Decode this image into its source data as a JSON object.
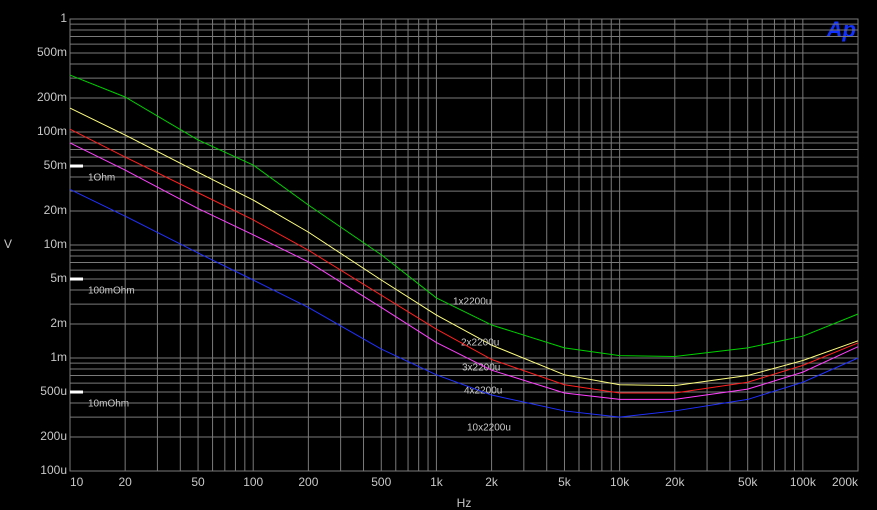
{
  "chart_data": {
    "type": "line",
    "logo": "Ap",
    "xlabel": "Hz",
    "ylabel": "V",
    "log_x": true,
    "log_y": true,
    "grid": true,
    "x": [
      10,
      20,
      50,
      100,
      200,
      500,
      1000,
      2000,
      5000,
      10000,
      20000,
      50000,
      100000,
      200000
    ],
    "series": [
      {
        "name": "1x2200u",
        "color": "#00d000",
        "values": [
          0.319,
          0.204,
          0.085,
          0.051,
          0.0226,
          0.0082,
          0.0034,
          0.00196,
          0.00123,
          0.00105,
          0.00103,
          0.00123,
          0.00156,
          0.00245
        ]
      },
      {
        "name": "2x2200u",
        "color": "#ffff80",
        "values": [
          0.163,
          0.094,
          0.044,
          0.025,
          0.013,
          0.0049,
          0.0024,
          0.0013,
          0.00071,
          0.00058,
          0.00057,
          0.0007,
          0.00095,
          0.00142
        ]
      },
      {
        "name": "3x2200u",
        "color": "#ff2020",
        "values": [
          0.106,
          0.06,
          0.029,
          0.0167,
          0.009,
          0.0036,
          0.0018,
          0.00097,
          0.00058,
          0.00049,
          0.00049,
          0.00061,
          0.00086,
          0.00136
        ]
      },
      {
        "name": "4x2200u",
        "color": "#ff40ff",
        "values": [
          0.08,
          0.046,
          0.021,
          0.0123,
          0.0071,
          0.0028,
          0.00137,
          0.00078,
          0.00049,
          0.00043,
          0.00043,
          0.00053,
          0.00075,
          0.00126
        ]
      },
      {
        "name": "10x2200u",
        "color": "#2030ff",
        "values": [
          0.031,
          0.018,
          0.0085,
          0.0049,
          0.0028,
          0.0012,
          0.00071,
          0.00047,
          0.00034,
          0.0003,
          0.00034,
          0.00043,
          0.00061,
          0.001
        ]
      }
    ],
    "annotations": [
      {
        "text": "1Ohm",
        "y": 0.05
      },
      {
        "text": "100mOhm",
        "y": 0.005
      },
      {
        "text": "10mOhm",
        "y": 0.0005
      }
    ],
    "xlim": [
      10,
      200000
    ],
    "ylim": [
      0.0001,
      1
    ],
    "xticks": [
      10,
      20,
      50,
      100,
      200,
      500,
      {
        "value": 1000,
        "label": "1k"
      },
      {
        "value": 2000,
        "label": "2k"
      },
      {
        "value": 5000,
        "label": "5k"
      },
      {
        "value": 10000,
        "label": "10k"
      },
      {
        "value": 20000,
        "label": "20k"
      },
      {
        "value": 50000,
        "label": "50k"
      },
      {
        "value": 100000,
        "label": "100k"
      },
      {
        "value": 200000,
        "label": "200k"
      }
    ],
    "yticks": [
      1,
      {
        "value": 0.5,
        "label": "500m"
      },
      {
        "value": 0.2,
        "label": "200m"
      },
      {
        "value": 0.1,
        "label": "100m"
      },
      {
        "value": 0.05,
        "label": "50m"
      },
      {
        "value": 0.02,
        "label": "20m"
      },
      {
        "value": 0.01,
        "label": "10m"
      },
      {
        "value": 0.005,
        "label": "5m"
      },
      {
        "value": 0.002,
        "label": "2m"
      },
      {
        "value": 0.001,
        "label": "1m"
      },
      {
        "value": 0.0005,
        "label": "500u"
      },
      {
        "value": 0.0002,
        "label": "200u"
      },
      {
        "value": 0.0001,
        "label": "100u"
      }
    ],
    "xminor": [
      30,
      40,
      60,
      70,
      80,
      90,
      300,
      400,
      600,
      700,
      800,
      900,
      3000,
      4000,
      6000,
      7000,
      8000,
      9000,
      30000,
      40000,
      60000,
      70000,
      80000,
      90000
    ],
    "yminor": [
      0.9,
      0.8,
      0.7,
      0.6,
      0.4,
      0.3,
      0.09,
      0.08,
      0.07,
      0.06,
      0.04,
      0.03,
      0.009,
      0.008,
      0.007,
      0.006,
      0.004,
      0.003,
      0.0009,
      0.0008,
      0.0007,
      0.0006,
      0.0004,
      0.0003
    ]
  }
}
